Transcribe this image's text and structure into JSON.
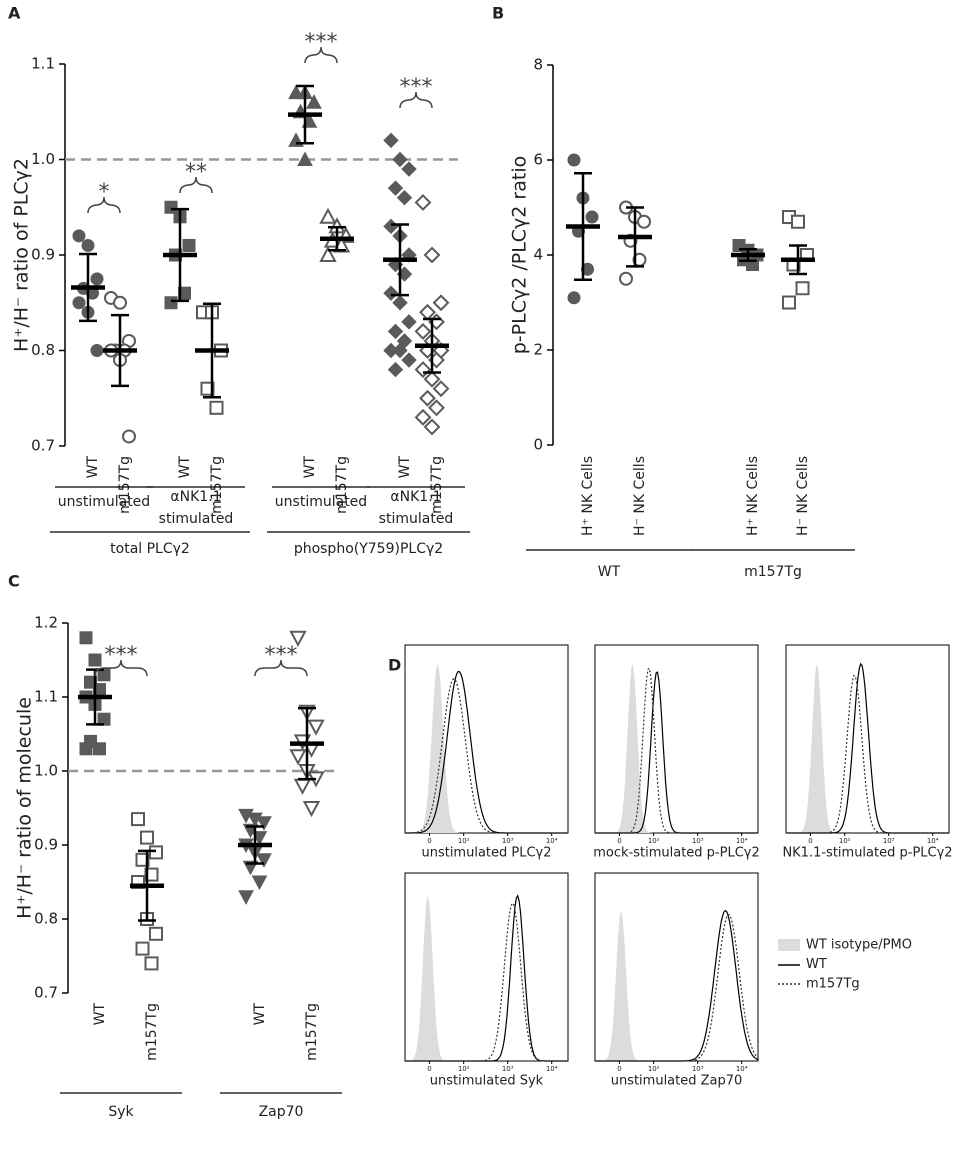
{
  "panel_labels": [
    "A",
    "B",
    "C",
    "D"
  ],
  "chart_data": [
    {
      "type": "scatter",
      "ylabel": "H⁺/H⁻ ratio of PLCγ2",
      "color": "#5a5a5a",
      "ylim": [
        0.7,
        1.1
      ],
      "yticks": [
        0.7,
        0.8,
        0.9,
        {
          "value": 1,
          "label": "1.0"
        },
        1.1
      ],
      "reference_line": 1,
      "sections": [
        {
          "label": "total PLCγ2",
          "conditions": [
            {
              "label": [
                "unstimulated"
              ],
              "significance": "*",
              "groups": [
                {
                  "name": "WT",
                  "marker": "circle",
                  "filled": true,
                  "values": [
                    0.92,
                    0.91,
                    0.875,
                    0.865,
                    0.86,
                    0.85,
                    0.84,
                    0.8
                  ],
                  "mean": 0.866,
                  "error": 0.035
                },
                {
                  "name": "m157Tg",
                  "marker": "circle",
                  "filled": false,
                  "values": [
                    0.855,
                    0.85,
                    0.81,
                    0.8,
                    0.8,
                    0.8,
                    0.79,
                    0.71
                  ],
                  "mean": 0.8,
                  "error": 0.037
                }
              ]
            },
            {
              "label": [
                "αNK1.1",
                "stimulated"
              ],
              "significance": "**",
              "groups": [
                {
                  "name": "WT",
                  "marker": "square",
                  "filled": true,
                  "values": [
                    0.95,
                    0.94,
                    0.91,
                    0.9,
                    0.86,
                    0.85
                  ],
                  "mean": 0.9,
                  "error": 0.048
                },
                {
                  "name": "m157Tg",
                  "marker": "square",
                  "filled": false,
                  "values": [
                    0.84,
                    0.84,
                    0.8,
                    0.76,
                    0.74
                  ],
                  "mean": 0.8,
                  "error": 0.049
                }
              ]
            }
          ]
        },
        {
          "label": "phospho(Y759)PLCγ2",
          "conditions": [
            {
              "label": [
                "unstimulated"
              ],
              "significance": "***",
              "groups": [
                {
                  "name": "WT",
                  "marker": "triangle",
                  "filled": true,
                  "values": [
                    1.07,
                    1.07,
                    1.06,
                    1.05,
                    1.04,
                    1.02,
                    1.0
                  ],
                  "mean": 1.047,
                  "error": 0.03
                },
                {
                  "name": "m157Tg",
                  "marker": "triangle",
                  "filled": false,
                  "values": [
                    0.94,
                    0.93,
                    0.92,
                    0.915,
                    0.91,
                    0.9
                  ],
                  "mean": 0.917,
                  "error": 0.012
                }
              ]
            },
            {
              "label": [
                "αNK1.1",
                "stimulated"
              ],
              "significance": "***",
              "groups": [
                {
                  "name": "WT",
                  "marker": "diamond",
                  "filled": true,
                  "values": [
                    1.02,
                    1.0,
                    0.99,
                    0.97,
                    0.96,
                    0.93,
                    0.92,
                    0.9,
                    0.89,
                    0.88,
                    0.86,
                    0.85,
                    0.83,
                    0.82,
                    0.81,
                    0.8,
                    0.8,
                    0.79,
                    0.78
                  ],
                  "mean": 0.895,
                  "error": 0.037
                },
                {
                  "name": "m157Tg",
                  "marker": "diamond",
                  "filled": false,
                  "values": [
                    0.955,
                    0.9,
                    0.85,
                    0.84,
                    0.83,
                    0.82,
                    0.81,
                    0.8,
                    0.8,
                    0.79,
                    0.78,
                    0.77,
                    0.76,
                    0.75,
                    0.74,
                    0.73,
                    0.72
                  ],
                  "mean": 0.805,
                  "error": 0.028
                }
              ]
            }
          ]
        }
      ]
    },
    {
      "type": "scatter",
      "ylabel": "p-PLCγ2 /PLCγ2 ratio",
      "color": "#5a5a5a",
      "ylim": [
        0,
        8
      ],
      "yticks": [
        0,
        2,
        4,
        6,
        8
      ],
      "sections": [
        {
          "label": "WT",
          "conditions": [
            {
              "groups": [
                {
                  "name": "H⁺ NK Cells",
                  "marker": "circle",
                  "filled": true,
                  "values": [
                    6.0,
                    5.2,
                    4.8,
                    4.5,
                    3.7,
                    3.1
                  ],
                  "mean": 4.6,
                  "error": 1.12
                },
                {
                  "name": "H⁻ NK Cells",
                  "marker": "circle",
                  "filled": false,
                  "values": [
                    5.0,
                    4.8,
                    4.7,
                    4.3,
                    3.9,
                    3.5
                  ],
                  "mean": 4.38,
                  "error": 0.62
                }
              ]
            }
          ]
        },
        {
          "label": "m157Tg",
          "conditions": [
            {
              "groups": [
                {
                  "name": "H⁺ NK Cells",
                  "marker": "square",
                  "filled": true,
                  "values": [
                    4.2,
                    4.1,
                    4.0,
                    3.9,
                    3.8
                  ],
                  "mean": 4.0,
                  "error": 0.12
                },
                {
                  "name": "H⁻ NK Cells",
                  "marker": "square",
                  "filled": false,
                  "values": [
                    4.8,
                    4.7,
                    4.0,
                    3.8,
                    3.3,
                    3.0
                  ],
                  "mean": 3.9,
                  "error": 0.3
                }
              ]
            }
          ]
        }
      ]
    },
    {
      "type": "scatter",
      "ylabel": "H⁺/H⁻ ratio of molecule",
      "color": "#5a5a5a",
      "ylim": [
        0.7,
        1.2
      ],
      "yticks": [
        0.7,
        0.8,
        0.9,
        {
          "value": 1,
          "label": "1.0"
        },
        1.1,
        1.2
      ],
      "reference_line": 1,
      "sections": [
        {
          "label": "Syk",
          "conditions": [
            {
              "significance": "***",
              "groups": [
                {
                  "name": "WT",
                  "marker": "square",
                  "filled": true,
                  "values": [
                    1.18,
                    1.15,
                    1.13,
                    1.12,
                    1.11,
                    1.1,
                    1.09,
                    1.07,
                    1.04,
                    1.03,
                    1.03
                  ],
                  "mean": 1.1,
                  "error": 0.037
                },
                {
                  "name": "m157Tg",
                  "marker": "square",
                  "filled": false,
                  "values": [
                    0.935,
                    0.91,
                    0.89,
                    0.88,
                    0.86,
                    0.85,
                    0.8,
                    0.78,
                    0.76,
                    0.74
                  ],
                  "mean": 0.845,
                  "error": 0.047
                }
              ]
            }
          ]
        },
        {
          "label": "Zap70",
          "conditions": [
            {
              "significance": "***",
              "groups": [
                {
                  "name": "WT",
                  "marker": "tridown",
                  "filled": true,
                  "values": [
                    0.94,
                    0.935,
                    0.93,
                    0.92,
                    0.91,
                    0.9,
                    0.89,
                    0.88,
                    0.87,
                    0.85,
                    0.83
                  ],
                  "mean": 0.9,
                  "error": 0.025
                },
                {
                  "name": "m157Tg",
                  "marker": "tridown",
                  "filled": false,
                  "values": [
                    1.18,
                    1.08,
                    1.06,
                    1.04,
                    1.03,
                    1.02,
                    1.0,
                    0.99,
                    0.98,
                    0.95
                  ],
                  "mean": 1.037,
                  "error": 0.048
                }
              ]
            }
          ]
        }
      ]
    }
  ],
  "flow_panel": {
    "xtick_labels": [
      "0",
      "10²",
      "10³",
      "10⁴"
    ],
    "titles": [
      "unstimulated PLCγ2",
      "mock-stimulated p-PLCγ2",
      "NK1.1-stimulated p-PLCγ2",
      "unstimulated Syk",
      "unstimulated Zap70"
    ],
    "legend": [
      "WT isotype/PMO",
      "WT",
      "m157Tg"
    ]
  }
}
